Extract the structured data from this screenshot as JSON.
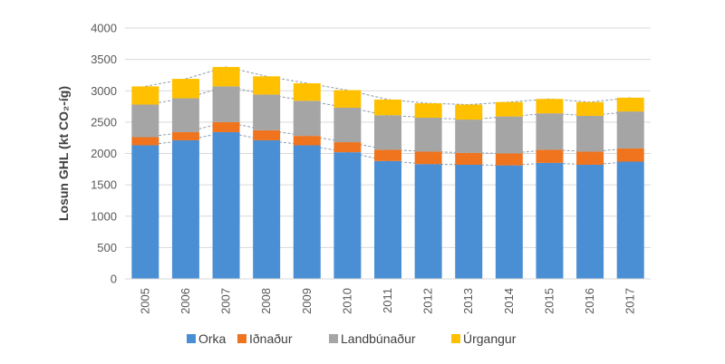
{
  "chart_data": {
    "type": "bar",
    "stacked": true,
    "categories": [
      "2005",
      "2006",
      "2007",
      "2008",
      "2009",
      "2010",
      "2011",
      "2012",
      "2013",
      "2014",
      "2015",
      "2016",
      "2017"
    ],
    "series": [
      {
        "name": "Orka",
        "color": "#4a8fd4",
        "values": [
          2130,
          2210,
          2340,
          2210,
          2130,
          2020,
          1880,
          1830,
          1820,
          1810,
          1850,
          1820,
          1870
        ]
      },
      {
        "name": "Iðnaður",
        "color": "#f0741e",
        "values": [
          130,
          130,
          160,
          160,
          150,
          160,
          180,
          200,
          190,
          190,
          210,
          210,
          210
        ]
      },
      {
        "name": "Landbúnaður",
        "color": "#a5a5a5",
        "values": [
          520,
          540,
          570,
          570,
          560,
          550,
          550,
          540,
          530,
          590,
          580,
          570,
          590
        ]
      },
      {
        "name": "Úrgangur",
        "color": "#ffc000",
        "values": [
          290,
          310,
          310,
          290,
          280,
          280,
          250,
          230,
          240,
          230,
          230,
          220,
          220
        ]
      }
    ],
    "ylabel": "Losun GHL (kt CO₂-íg)",
    "ylim": [
      0,
      4000
    ],
    "yticks": [
      "0",
      "500",
      "1000",
      "1500",
      "2000",
      "2500",
      "3000",
      "3500",
      "4000"
    ],
    "grid": true,
    "legend": "bottom",
    "connector_lines": "dashed"
  }
}
